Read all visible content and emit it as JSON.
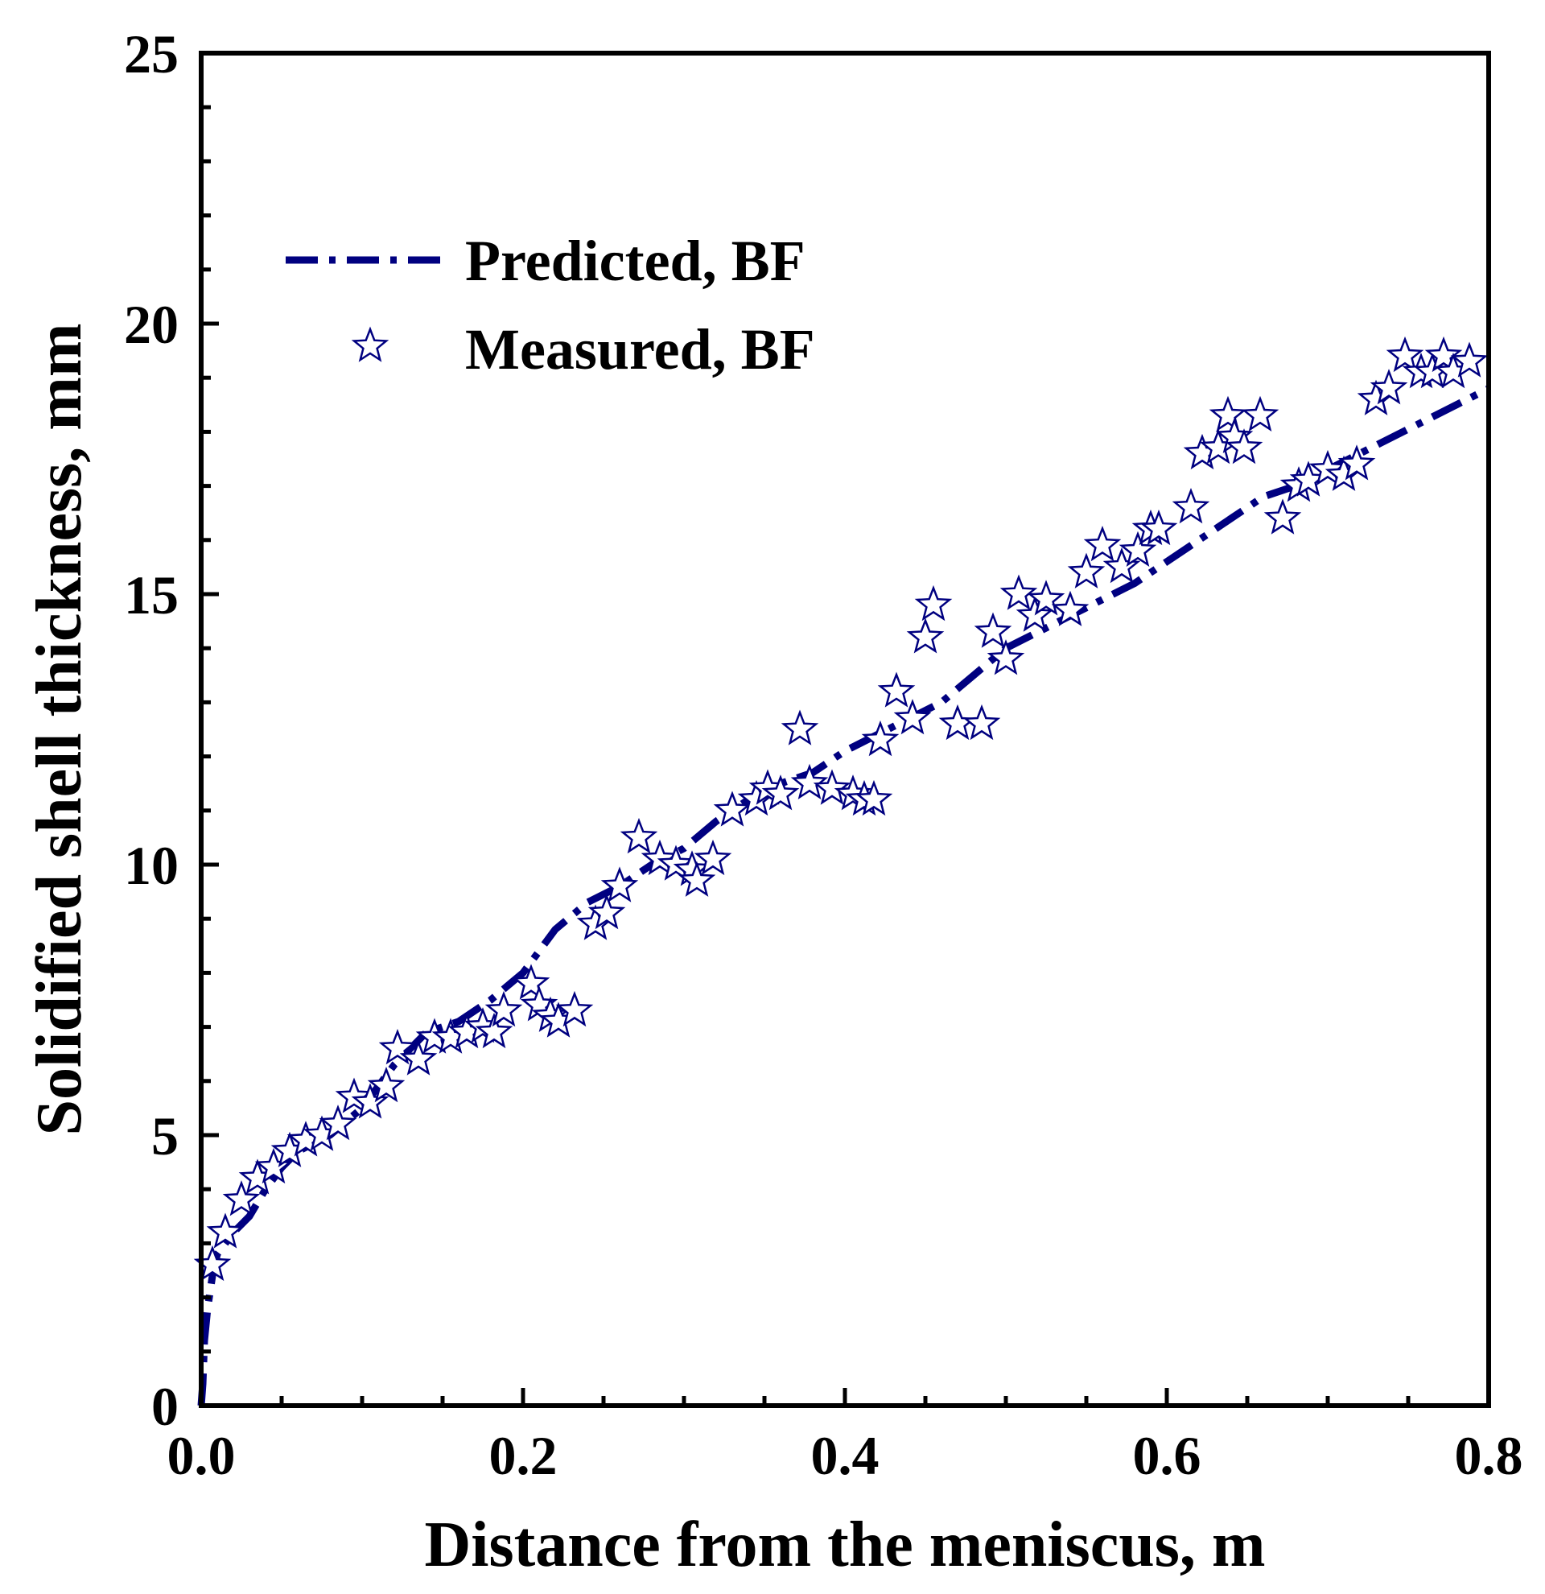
{
  "chart_data": {
    "type": "scatter",
    "xlabel": "Distance from the meniscus, m",
    "ylabel": "Solidified shell thickness, mm",
    "xlim": [
      0.0,
      0.8
    ],
    "ylim": [
      0,
      25
    ],
    "xticks": [
      0.0,
      0.2,
      0.4,
      0.6,
      0.8
    ],
    "xtick_labels": [
      "0.0",
      "0.2",
      "0.4",
      "0.6",
      "0.8"
    ],
    "yticks": [
      0,
      5,
      10,
      15,
      20,
      25
    ],
    "ytick_labels": [
      "0",
      "5",
      "10",
      "15",
      "20",
      "25"
    ],
    "grid": false,
    "legend_position": "top-left",
    "colors": {
      "series": "#000080",
      "axis": "#000000"
    },
    "series": [
      {
        "name": "Predicted, BF",
        "style": "dash-dot line",
        "x": [
          0.0,
          0.001,
          0.002,
          0.004,
          0.007,
          0.01,
          0.015,
          0.02,
          0.03,
          0.04,
          0.05,
          0.06,
          0.08,
          0.1,
          0.12,
          0.14,
          0.16,
          0.18,
          0.2,
          0.22,
          0.24,
          0.26,
          0.28,
          0.3,
          0.32,
          0.34,
          0.36,
          0.38,
          0.4,
          0.42,
          0.44,
          0.46,
          0.48,
          0.5,
          0.52,
          0.54,
          0.56,
          0.58,
          0.6,
          0.62,
          0.64,
          0.66,
          0.68,
          0.7,
          0.72,
          0.74,
          0.76,
          0.78,
          0.8
        ],
        "y": [
          0.0,
          0.4,
          1.2,
          1.8,
          2.4,
          2.8,
          3.0,
          3.2,
          3.5,
          4.0,
          4.4,
          4.7,
          5.0,
          5.5,
          6.3,
          6.9,
          7.1,
          7.5,
          8.0,
          8.8,
          9.3,
          9.6,
          10.0,
          10.3,
          10.8,
          11.2,
          11.5,
          11.7,
          12.1,
          12.4,
          12.7,
          13.0,
          13.5,
          14.0,
          14.3,
          14.6,
          14.9,
          15.2,
          15.6,
          16.0,
          16.4,
          16.8,
          17.0,
          17.3,
          17.6,
          17.9,
          18.2,
          18.5,
          18.8
        ]
      },
      {
        "name": "Measured, BF",
        "style": "open star markers",
        "x": [
          0.007,
          0.015,
          0.025,
          0.035,
          0.045,
          0.055,
          0.065,
          0.075,
          0.085,
          0.095,
          0.105,
          0.115,
          0.122,
          0.135,
          0.145,
          0.155,
          0.165,
          0.175,
          0.182,
          0.188,
          0.205,
          0.21,
          0.217,
          0.222,
          0.232,
          0.245,
          0.252,
          0.26,
          0.272,
          0.285,
          0.295,
          0.305,
          0.308,
          0.318,
          0.33,
          0.345,
          0.352,
          0.36,
          0.372,
          0.378,
          0.392,
          0.405,
          0.412,
          0.418,
          0.422,
          0.432,
          0.442,
          0.45,
          0.455,
          0.47,
          0.485,
          0.492,
          0.5,
          0.508,
          0.518,
          0.525,
          0.54,
          0.55,
          0.56,
          0.572,
          0.582,
          0.59,
          0.595,
          0.615,
          0.622,
          0.632,
          0.638,
          0.642,
          0.648,
          0.658,
          0.672,
          0.682,
          0.688,
          0.7,
          0.71,
          0.718,
          0.73,
          0.738,
          0.748,
          0.758,
          0.765,
          0.772,
          0.778,
          0.788
        ],
        "y": [
          2.6,
          3.2,
          3.8,
          4.2,
          4.4,
          4.7,
          4.9,
          5.0,
          5.2,
          5.7,
          5.6,
          5.9,
          6.6,
          6.4,
          6.8,
          6.8,
          6.9,
          7.0,
          6.9,
          7.3,
          7.8,
          7.4,
          7.2,
          7.1,
          7.3,
          8.9,
          9.1,
          9.6,
          10.5,
          10.1,
          10.0,
          9.9,
          9.7,
          10.1,
          11.0,
          11.2,
          11.4,
          11.3,
          12.5,
          11.5,
          11.4,
          11.3,
          11.2,
          11.2,
          12.3,
          13.2,
          12.7,
          14.2,
          14.8,
          12.6,
          12.6,
          14.3,
          13.8,
          15.0,
          14.6,
          14.9,
          14.7,
          15.4,
          15.9,
          15.5,
          15.8,
          16.2,
          16.2,
          16.6,
          17.6,
          17.7,
          18.3,
          17.9,
          17.7,
          18.3,
          16.4,
          17.0,
          17.1,
          17.3,
          17.2,
          17.4,
          18.6,
          18.8,
          19.4,
          19.1,
          19.1,
          19.4,
          19.1,
          19.3
        ]
      }
    ]
  }
}
